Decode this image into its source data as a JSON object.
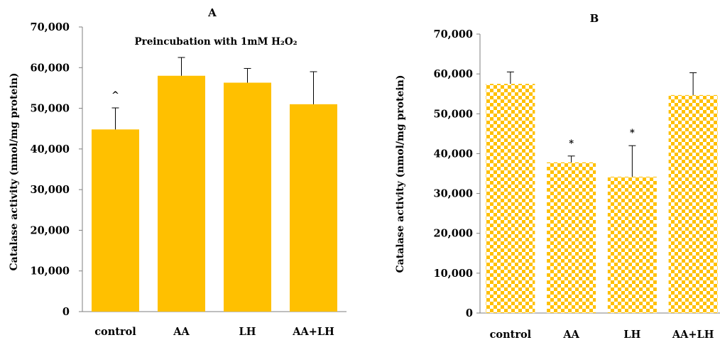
{
  "colors": {
    "bar_fill": "#FFC000",
    "checker_light": "#FFFFFF",
    "axis": "#7F7F7F",
    "error_bar": "#000000"
  },
  "chart_data": [
    {
      "type": "bar",
      "panel": "A",
      "title": "A",
      "subtitle": "Preincubation with 1mM H₂O₂",
      "ylabel": "Catalase activity (nmol/mg protein)",
      "xlabel": "",
      "ylim": [
        0,
        70000
      ],
      "yticks": [
        0,
        10000,
        20000,
        30000,
        40000,
        50000,
        60000,
        70000
      ],
      "ytick_labels": [
        "0",
        "10,000",
        "20,000",
        "30,000",
        "40,000",
        "50,000",
        "60,000",
        "70,000"
      ],
      "grid": false,
      "bar_style": "solid",
      "categories": [
        "control",
        "AA",
        "LH",
        "AA+LH"
      ],
      "values": [
        44800,
        58000,
        56300,
        51000
      ],
      "errors": [
        5300,
        4500,
        3500,
        8000
      ],
      "annotations": [
        "^",
        "",
        "",
        ""
      ]
    },
    {
      "type": "bar",
      "panel": "B",
      "title": "B",
      "subtitle": "",
      "ylabel": "Catalase activity (nmol/mg protein)",
      "xlabel": "",
      "ylim": [
        0,
        70000
      ],
      "yticks": [
        0,
        10000,
        20000,
        30000,
        40000,
        50000,
        60000,
        70000
      ],
      "ytick_labels": [
        "0",
        "10,000",
        "20,000",
        "30,000",
        "40,000",
        "50,000",
        "60,000",
        "70,000"
      ],
      "grid": false,
      "bar_style": "checkered",
      "categories": [
        "control",
        "AA",
        "LH",
        "AA+LH"
      ],
      "values": [
        57500,
        37800,
        34200,
        54700
      ],
      "errors": [
        3000,
        1600,
        7800,
        5600
      ],
      "annotations": [
        "",
        "*",
        "*",
        ""
      ]
    }
  ]
}
